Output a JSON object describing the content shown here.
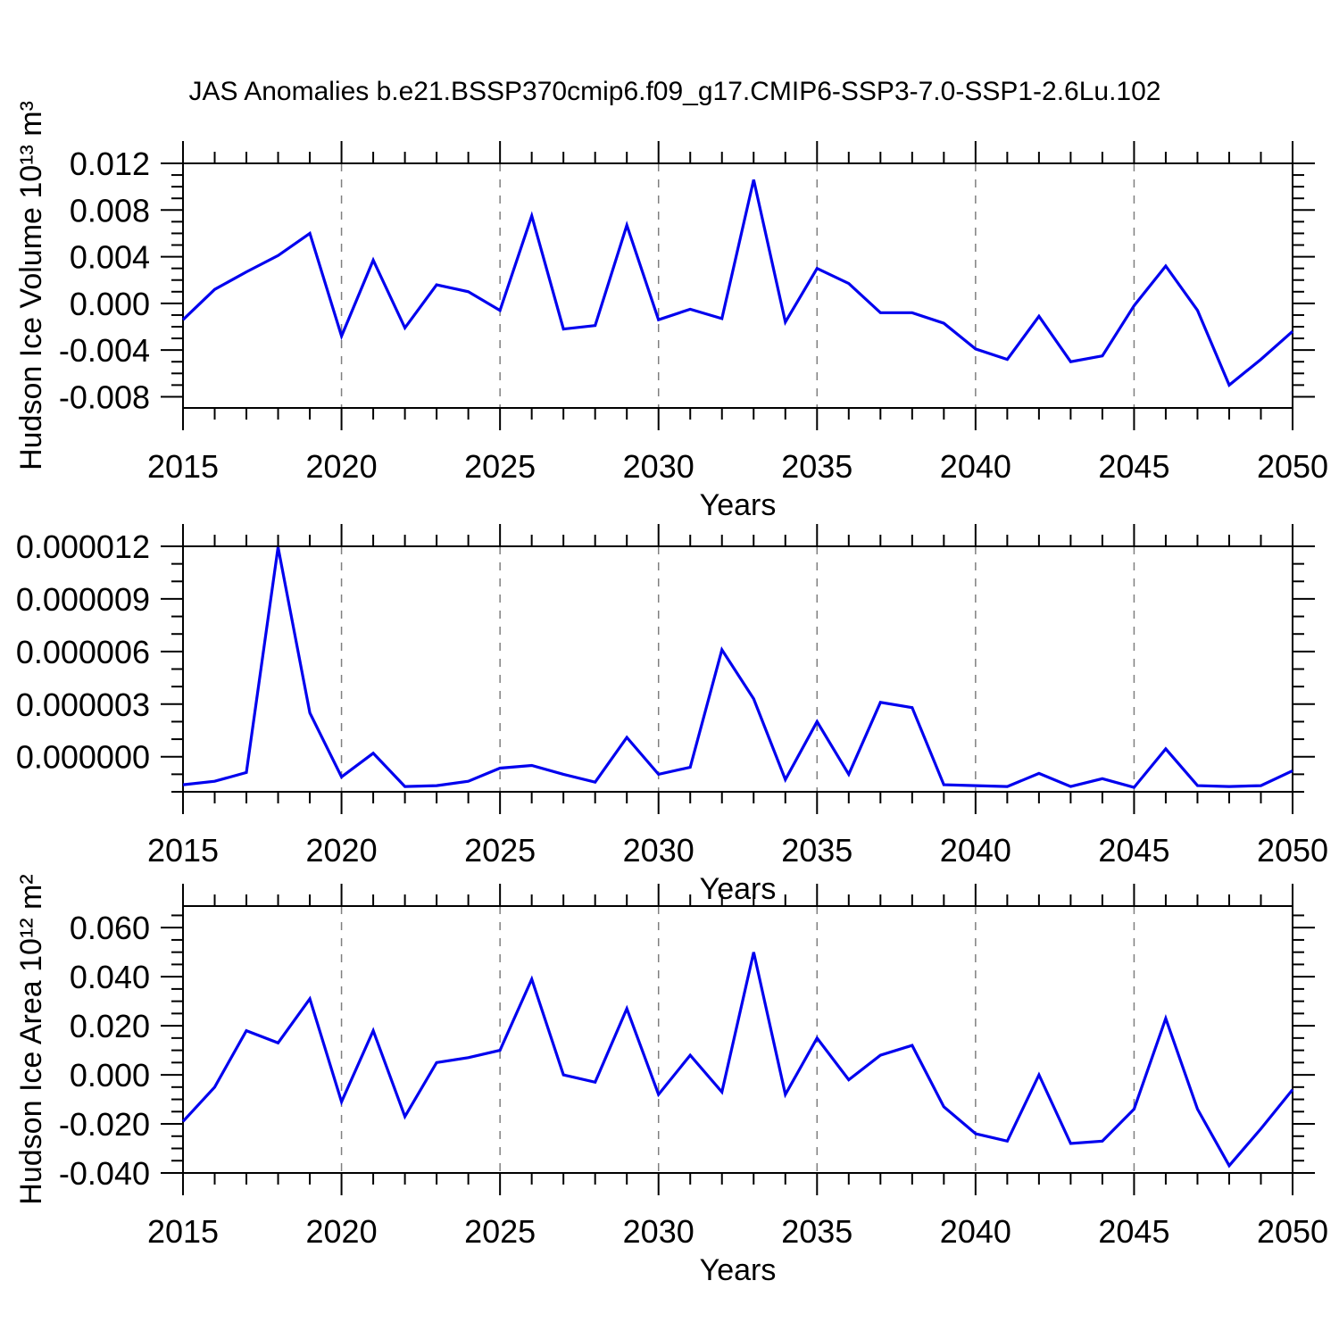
{
  "title": "JAS Anomalies b.e21.BSSP370cmip6.f09_g17.CMIP6-SSP3-7.0-SSP1-2.6Lu.102",
  "colors": {
    "line": "#0000ee",
    "frame": "#000000",
    "grid": "#7f7f7f",
    "text": "#000000",
    "background": "#ffffff"
  },
  "chart_data": {
    "type": "line",
    "x_label": "Years",
    "years": [
      2015,
      2016,
      2017,
      2018,
      2019,
      2020,
      2021,
      2022,
      2023,
      2024,
      2025,
      2026,
      2027,
      2028,
      2029,
      2030,
      2031,
      2032,
      2033,
      2034,
      2035,
      2036,
      2037,
      2038,
      2039,
      2040,
      2041,
      2042,
      2043,
      2044,
      2045,
      2046,
      2047,
      2048,
      2049,
      2050
    ],
    "x_major_ticks": {
      "values": [
        2015,
        2020,
        2025,
        2030,
        2035,
        2040,
        2045,
        2050
      ],
      "labels": [
        "2015",
        "2020",
        "2025",
        "2030",
        "2035",
        "2040",
        "2045",
        "2050"
      ]
    },
    "x_minor_step": 1,
    "grid_years": [
      2020,
      2025,
      2030,
      2035,
      2040,
      2045
    ],
    "panels": [
      {
        "name": "hudson-ice-volume",
        "ylabel": "Hudson Ice Volume 10¹³ m³",
        "ylim": [
          -0.00896,
          0.012
        ],
        "yticks": {
          "values": [
            0.012,
            0.008,
            0.004,
            0.0,
            -0.004,
            -0.008
          ],
          "labels": [
            "0.012",
            "0.008",
            "0.004",
            "0.000",
            "-0.004",
            "-0.008"
          ]
        },
        "y_minor_step": 0.001,
        "values": [
          -0.0014,
          0.0012,
          0.0027,
          0.0041,
          0.006,
          -0.0028,
          0.0037,
          -0.0021,
          0.0016,
          0.001,
          -0.0006,
          0.0075,
          -0.0022,
          -0.0019,
          0.0067,
          -0.0014,
          -0.0005,
          -0.0013,
          0.0106,
          -0.0016,
          0.003,
          0.0017,
          -0.0008,
          -0.0008,
          -0.0017,
          -0.0039,
          -0.0048,
          -0.0011,
          -0.005,
          -0.0045,
          -0.0002,
          0.0032,
          -0.0006,
          -0.007,
          -0.0048,
          -0.0024
        ]
      },
      {
        "name": "middle-anomaly",
        "ylabel": "",
        "ylim": [
          -2e-06,
          1.2e-05
        ],
        "yticks": {
          "values": [
            1.2e-05,
            9e-06,
            6e-06,
            3e-06,
            0.0
          ],
          "labels": [
            "0.000012",
            "0.000009",
            "0.000006",
            "0.000003",
            "0.000000"
          ]
        },
        "y_minor_step": 1e-06,
        "values": [
          -1.6e-06,
          -1.4e-06,
          -9e-07,
          1.195e-05,
          2.5e-06,
          -1.15e-06,
          2e-07,
          -1.7e-06,
          -1.65e-06,
          -1.4e-06,
          -6.5e-07,
          -5e-07,
          -1e-06,
          -1.45e-06,
          1.1e-06,
          -1e-06,
          -6e-07,
          6.1e-06,
          3.3e-06,
          -1.3e-06,
          2e-06,
          -1e-06,
          3.1e-06,
          2.8e-06,
          -1.6e-06,
          -1.65e-06,
          -1.7e-06,
          -9.5e-07,
          -1.7e-06,
          -1.25e-06,
          -1.75e-06,
          4.5e-07,
          -1.65e-06,
          -1.7e-06,
          -1.65e-06,
          -8e-07
        ]
      },
      {
        "name": "hudson-ice-area",
        "ylabel": "Hudson Ice Area 10¹² m²",
        "ylim": [
          -0.04,
          0.0688
        ],
        "yticks": {
          "values": [
            0.06,
            0.04,
            0.02,
            0.0,
            -0.02,
            -0.04
          ],
          "labels": [
            "0.060",
            "0.040",
            "0.020",
            "0.000",
            "-0.020",
            "-0.040"
          ]
        },
        "y_minor_step": 0.005,
        "values": [
          -0.019,
          -0.005,
          0.018,
          0.013,
          0.031,
          -0.011,
          0.018,
          -0.017,
          0.005,
          0.007,
          0.01,
          0.039,
          0.0,
          -0.003,
          0.027,
          -0.008,
          0.008,
          -0.007,
          0.05,
          -0.008,
          0.015,
          -0.002,
          0.008,
          0.012,
          -0.013,
          -0.024,
          -0.027,
          0.0,
          -0.028,
          -0.027,
          -0.014,
          0.023,
          -0.014,
          -0.037,
          -0.022,
          -0.006
        ]
      }
    ]
  }
}
